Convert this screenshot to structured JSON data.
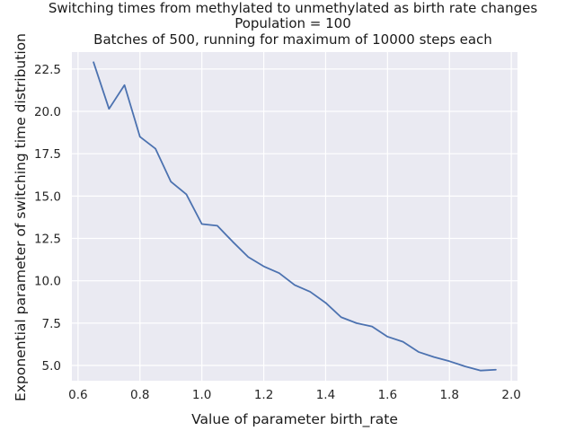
{
  "chart_data": {
    "type": "line",
    "title_lines": [
      "Switching times from methylated to unmethylated as birth rate changes",
      "Population = 100",
      "Batches of 500, running for maximum of 10000 steps each"
    ],
    "xlabel": "Value of parameter birth_rate",
    "ylabel": "Exponential parameter of switching time distribution",
    "xlim": [
      0.58,
      2.02
    ],
    "ylim": [
      4.1,
      23.5
    ],
    "xticks": [
      0.6,
      0.8,
      1.0,
      1.2,
      1.4,
      1.6,
      1.8,
      2.0
    ],
    "xtick_labels": [
      "0.6",
      "0.8",
      "1.0",
      "1.2",
      "1.4",
      "1.6",
      "1.8",
      "2.0"
    ],
    "yticks": [
      5.0,
      7.5,
      10.0,
      12.5,
      15.0,
      17.5,
      20.0,
      22.5
    ],
    "ytick_labels": [
      "5.0",
      "7.5",
      "10.0",
      "12.5",
      "15.0",
      "17.5",
      "20.0",
      "22.5"
    ],
    "grid": true,
    "colors": {
      "background": "#eaeaf2",
      "grid": "#ffffff",
      "line": "#4c72b0"
    },
    "series": [
      {
        "x": [
          0.65,
          0.7,
          0.75,
          0.8,
          0.85,
          0.9,
          0.95,
          1.0,
          1.05,
          1.1,
          1.15,
          1.2,
          1.25,
          1.3,
          1.35,
          1.4,
          1.45,
          1.5,
          1.55,
          1.6,
          1.65,
          1.7,
          1.75,
          1.8,
          1.85,
          1.9,
          1.95
        ],
        "y": [
          22.9,
          20.15,
          21.55,
          18.5,
          17.8,
          15.85,
          15.1,
          13.35,
          13.25,
          12.3,
          11.4,
          10.85,
          10.45,
          9.75,
          9.35,
          8.7,
          7.85,
          7.5,
          7.3,
          6.7,
          6.4,
          5.8,
          5.5,
          5.25,
          4.95,
          4.7,
          4.75
        ]
      }
    ]
  }
}
